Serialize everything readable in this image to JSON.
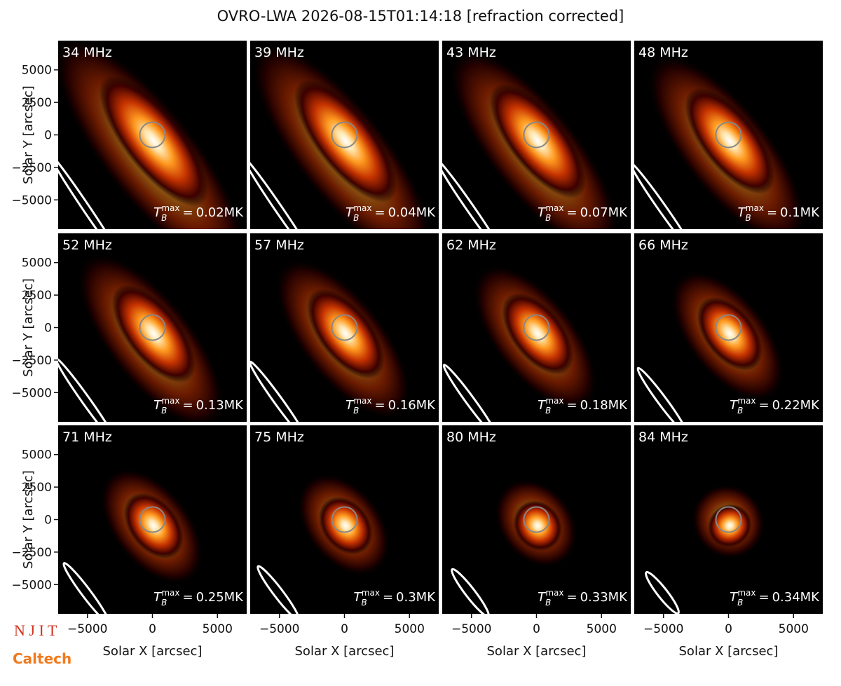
{
  "chart_data": {
    "type": "image-grid",
    "title": "OVRO-LWA 2026-08-15T01:14:18 [refraction corrected]",
    "xlabel": "Solar X [arcsec]",
    "ylabel": "Solar Y [arcsec]",
    "xlim": [
      -7250,
      7250
    ],
    "ylim": [
      -7250,
      7250
    ],
    "xticks": [
      {
        "value": -5000,
        "label": "−5000"
      },
      0,
      5000
    ],
    "yticks": [
      {
        "value": -5000,
        "label": "−5000"
      },
      {
        "value": -2500,
        "label": "−2500"
      },
      0,
      2500,
      5000
    ],
    "tb_symbol": {
      "base": "T",
      "sub": "B",
      "sup": "max"
    },
    "tb_equals": "=",
    "panels": [
      {
        "label": "34 MHz",
        "tmax": "0.02MK"
      },
      {
        "label": "39 MHz",
        "tmax": "0.04MK"
      },
      {
        "label": "43 MHz",
        "tmax": "0.07MK"
      },
      {
        "label": "48 MHz",
        "tmax": "0.1MK"
      },
      {
        "label": "52 MHz",
        "tmax": "0.13MK"
      },
      {
        "label": "57 MHz",
        "tmax": "0.16MK"
      },
      {
        "label": "62 MHz",
        "tmax": "0.18MK"
      },
      {
        "label": "66 MHz",
        "tmax": "0.22MK"
      },
      {
        "label": "71 MHz",
        "tmax": "0.25MK"
      },
      {
        "label": "75 MHz",
        "tmax": "0.3MK"
      },
      {
        "label": "80 MHz",
        "tmax": "0.33MK"
      },
      {
        "label": "84 MHz",
        "tmax": "0.34MK"
      }
    ]
  },
  "logos": {
    "njit": "N J I T",
    "caltech": "Caltech"
  }
}
